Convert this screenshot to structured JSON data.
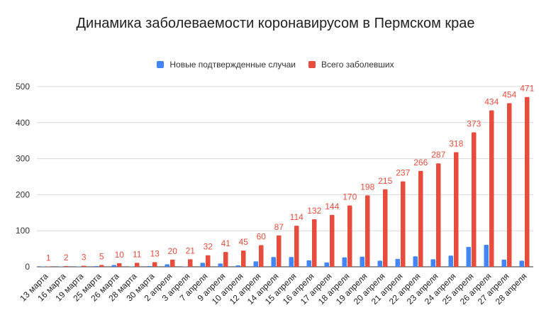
{
  "chart_data": {
    "type": "bar",
    "title": "Динамика заболеваемости коронавирусом в Пермском крае",
    "xlabel": "",
    "ylabel": "",
    "ylim": [
      0,
      500
    ],
    "yticks": [
      0,
      100,
      200,
      300,
      400,
      500
    ],
    "grid": true,
    "legend_position": "top",
    "categories": [
      "13 марта",
      "16 марта",
      "19 марта",
      "25 марта",
      "26 марта",
      "28 марта",
      "30 марта",
      "2 апреля",
      "3 апреля",
      "7 апреля",
      "9 апреля",
      "10 апреля",
      "12 апреля",
      "14 апреля",
      "15 апреля",
      "16 апреля",
      "17 апреля",
      "18 апреля",
      "19 апреля",
      "20 апреля",
      "21 апреля",
      "22 апреля",
      "23 апреля",
      "24 апреля",
      "25 апреля",
      "26 апреля",
      "27 апреля",
      "28 апреля"
    ],
    "series": [
      {
        "name": "Новые подтвержденные случаи",
        "color": "#4285f4",
        "values": [
          1,
          1,
          1,
          2,
          5,
          1,
          2,
          7,
          1,
          11,
          9,
          4,
          15,
          27,
          27,
          18,
          12,
          26,
          28,
          17,
          22,
          29,
          21,
          31,
          55,
          61,
          20,
          17
        ]
      },
      {
        "name": "Всего заболевших",
        "color": "#e84c3d",
        "values": [
          1,
          2,
          3,
          5,
          10,
          11,
          13,
          20,
          21,
          32,
          41,
          45,
          60,
          87,
          114,
          132,
          144,
          170,
          198,
          215,
          237,
          266,
          287,
          318,
          373,
          434,
          454,
          471
        ]
      }
    ],
    "data_labels_series": "Всего заболевших"
  }
}
